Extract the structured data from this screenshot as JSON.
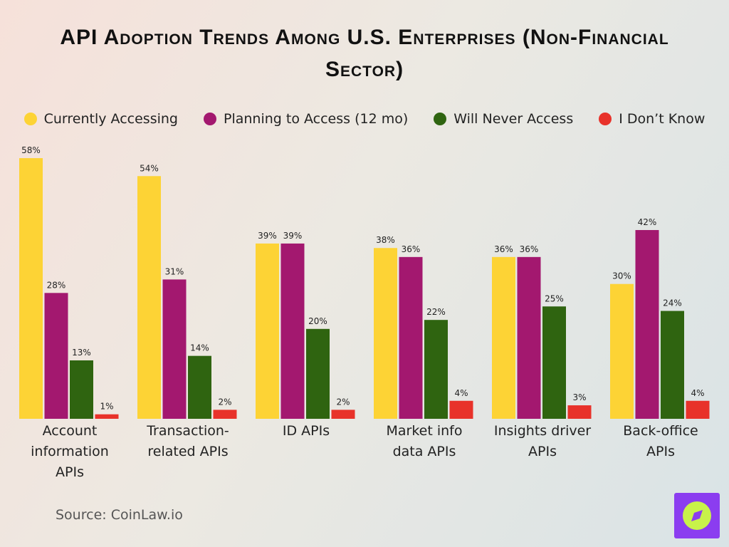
{
  "chart_data": {
    "type": "bar",
    "title": "API Adoption Trends Among U.S. Enterprises (Non-Financial Sector)",
    "categories": [
      "Account information APIs",
      "Transaction-related APIs",
      "ID APIs",
      "Market info data APIs",
      "Insights driver APIs",
      "Back-office APIs"
    ],
    "series": [
      {
        "name": "Currently Accessing",
        "color": "#fdd335",
        "values": [
          58,
          54,
          39,
          38,
          36,
          30
        ],
        "value_labels": [
          "58%",
          "54%",
          "39%",
          "38%",
          "36%",
          "30%"
        ]
      },
      {
        "name": "Planning to Access (12 mo)",
        "color": "#a3186f",
        "values": [
          28,
          31,
          39,
          36,
          36,
          42
        ],
        "value_labels": [
          "28%",
          "31%",
          "39%",
          "36%",
          "36%",
          "42%"
        ]
      },
      {
        "name": "Will Never Access",
        "color": "#2f6410",
        "values": [
          13,
          14,
          20,
          22,
          25,
          24
        ],
        "value_labels": [
          "13%",
          "14%",
          "20%",
          "22%",
          "25%",
          "24%"
        ]
      },
      {
        "name": "I Don’t Know",
        "color": "#e8322a",
        "values": [
          1,
          2,
          2,
          4,
          3,
          4
        ],
        "value_labels": [
          "1%",
          "2%",
          "2%",
          "4%",
          "3%",
          "4%"
        ]
      }
    ],
    "source": "Source: CoinLaw.io"
  }
}
